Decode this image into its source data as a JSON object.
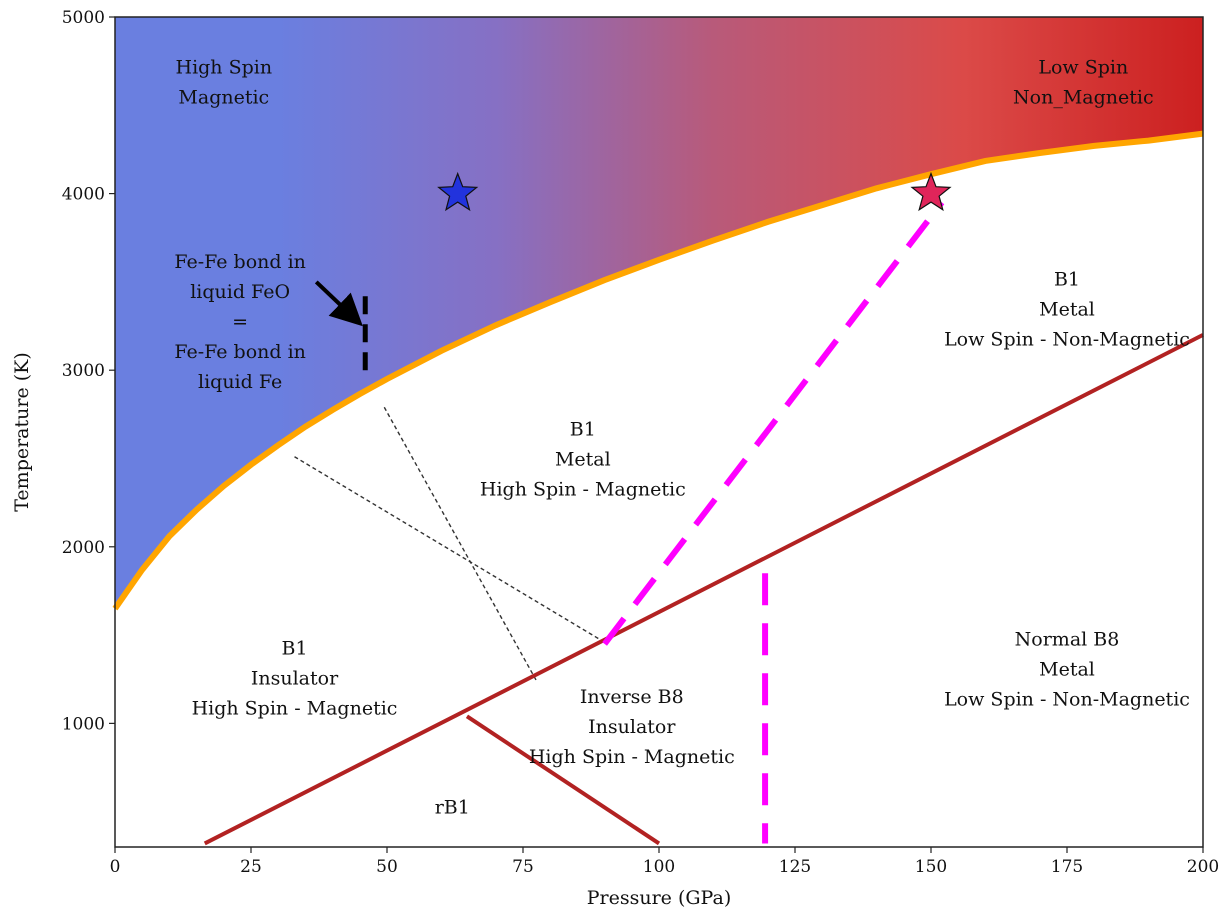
{
  "chart_data": {
    "type": "phase-diagram",
    "xlabel": "Pressure (GPa)",
    "ylabel": "Temperature (K)",
    "xlim": [
      0,
      200
    ],
    "ylim": [
      300,
      5000
    ],
    "xticks": [
      0,
      25,
      50,
      75,
      100,
      125,
      150,
      175,
      200
    ],
    "yticks": [
      1000,
      2000,
      3000,
      4000,
      5000
    ],
    "grid": false,
    "colors": {
      "high_spin_region": "#6a7fe0",
      "low_spin_region": "#cc2020",
      "melting_curve": "#ffa500",
      "phase_boundary": "#b22222",
      "spin_transition": "#ff00ff",
      "eos_lines": "#333333",
      "blue_star": "#2233dd",
      "red_star": "#e0255a"
    },
    "melting_curve": {
      "x": [
        0,
        5,
        10,
        15,
        20,
        25,
        30,
        35,
        40,
        45,
        50,
        60,
        70,
        80,
        90,
        100,
        110,
        120,
        130,
        140,
        150,
        160,
        170,
        180,
        190,
        200
      ],
      "y": [
        1650,
        1870,
        2060,
        2210,
        2345,
        2465,
        2575,
        2680,
        2775,
        2865,
        2950,
        3110,
        3255,
        3385,
        3510,
        3625,
        3735,
        3840,
        3935,
        4030,
        4110,
        4185,
        4230,
        4270,
        4300,
        4340
      ]
    },
    "phase_boundaries": [
      {
        "x": [
          16.5,
          200
        ],
        "y": [
          320,
          3200
        ]
      },
      {
        "x": [
          64.7,
          100
        ],
        "y": [
          1040,
          320
        ]
      }
    ],
    "spin_transitions": [
      {
        "x": [
          90,
          152
        ],
        "y": [
          1450,
          3950
        ]
      },
      {
        "x": [
          119.5,
          119.5
        ],
        "y": [
          1850,
          320
        ]
      }
    ],
    "eos_lines": [
      {
        "x": [
          33,
          90.5
        ],
        "y": [
          2510,
          1450
        ]
      },
      {
        "x": [
          49.5,
          77.5
        ],
        "y": [
          2790,
          1240
        ]
      }
    ],
    "vertical_marker": {
      "x": [
        46,
        46
      ],
      "y": [
        3000,
        3420
      ]
    },
    "arrow": {
      "from": [
        37,
        3500
      ],
      "to": [
        44.5,
        3280
      ]
    },
    "stars": [
      {
        "x": 63,
        "y": 4000,
        "color": "#2233dd"
      },
      {
        "x": 150,
        "y": 4000,
        "color": "#e0255a"
      }
    ],
    "annotations": [
      {
        "lines": [
          "High Spin",
          "Magnetic"
        ],
        "x": 20,
        "y": 4680
      },
      {
        "lines": [
          "Low Spin",
          "Non_Magnetic"
        ],
        "x": 178,
        "y": 4680
      },
      {
        "lines": [
          "Fe-Fe bond in",
          "liquid FeO",
          "=",
          "Fe-Fe bond in",
          "liquid Fe"
        ],
        "x": 23,
        "y": 3580
      },
      {
        "lines": [
          "B1",
          "Metal",
          "Low Spin - Non-Magnetic"
        ],
        "x": 175,
        "y": 3480
      },
      {
        "lines": [
          "B1",
          "Metal",
          "High Spin - Magnetic"
        ],
        "x": 86,
        "y": 2630
      },
      {
        "lines": [
          "B1",
          "Insulator",
          "High Spin - Magnetic"
        ],
        "x": 33,
        "y": 1390
      },
      {
        "lines": [
          "Inverse B8",
          "Insulator",
          "High Spin - Magnetic"
        ],
        "x": 95,
        "y": 1115
      },
      {
        "lines": [
          "Normal B8",
          "Metal",
          "Low Spin - Non-Magnetic"
        ],
        "x": 175,
        "y": 1440
      },
      {
        "lines": [
          "rB1"
        ],
        "x": 62,
        "y": 490
      }
    ]
  }
}
